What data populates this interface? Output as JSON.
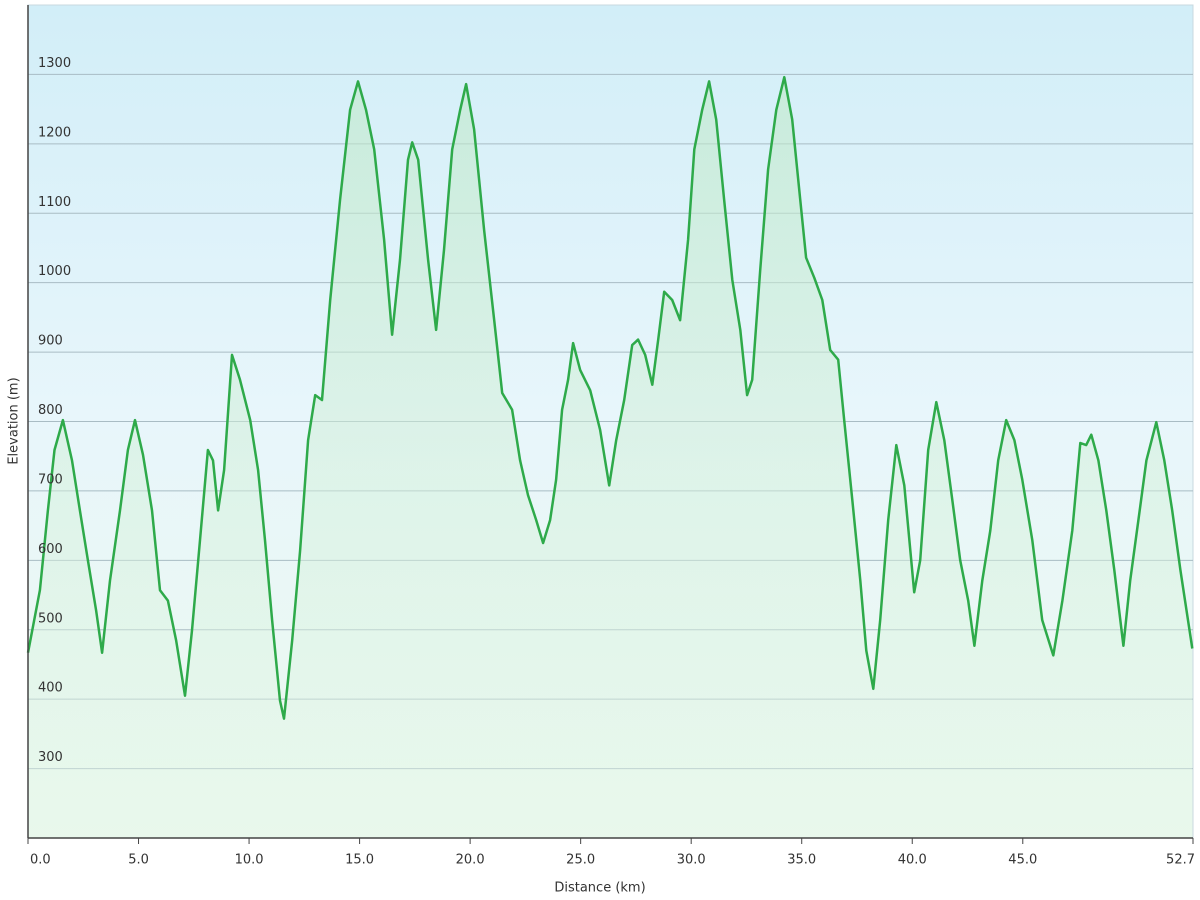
{
  "chart_data": {
    "type": "area",
    "x_label": "Distance (km)",
    "y_label": "Elevation (m)",
    "x": [
      0,
      0.54,
      0.9,
      1.2,
      1.58,
      1.99,
      2.35,
      2.71,
      3.08,
      3.35,
      3.71,
      4.16,
      4.52,
      4.84,
      5.2,
      5.61,
      5.97,
      6.33,
      6.7,
      7.1,
      7.42,
      7.78,
      8.14,
      8.37,
      8.6,
      8.87,
      9.23,
      9.59,
      10.05,
      10.41,
      10.72,
      11.04,
      11.4,
      11.58,
      11.95,
      12.31,
      12.67,
      12.99,
      13.3,
      13.67,
      14.12,
      14.57,
      14.93,
      15.29,
      15.66,
      16.11,
      16.47,
      16.83,
      17.19,
      17.38,
      17.65,
      18.1,
      18.46,
      18.82,
      19.19,
      19.55,
      19.82,
      20.18,
      20.63,
      21.09,
      21.45,
      21.9,
      22.26,
      22.62,
      22.99,
      23.3,
      23.62,
      23.89,
      24.16,
      24.43,
      24.66,
      24.98,
      25.43,
      25.88,
      26.29,
      26.61,
      26.97,
      27.33,
      27.6,
      27.92,
      28.24,
      28.51,
      28.78,
      29.14,
      29.5,
      29.86,
      30.14,
      30.5,
      30.81,
      31.13,
      31.49,
      31.86,
      32.22,
      32.53,
      32.76,
      33.12,
      33.48,
      33.85,
      34.21,
      34.57,
      34.93,
      35.2,
      35.57,
      35.93,
      36.29,
      36.65,
      36.92,
      37.29,
      37.65,
      37.92,
      38.24,
      38.55,
      38.91,
      39.28,
      39.64,
      40.09,
      40.36,
      40.72,
      41.09,
      41.45,
      41.81,
      42.17,
      42.53,
      42.81,
      43.17,
      43.53,
      43.89,
      44.25,
      44.62,
      44.98,
      45.43,
      45.88,
      46.38,
      46.79,
      47.24,
      47.6,
      47.87,
      48.1,
      48.42,
      48.78,
      49.14,
      49.55,
      49.86,
      50.23,
      50.59,
      51.04,
      51.4,
      51.76,
      52.13,
      52.67
    ],
    "values": [
      467,
      557,
      672,
      759,
      802,
      744,
      672,
      600,
      528,
      467,
      571,
      672,
      759,
      802,
      752,
      672,
      557,
      542,
      485,
      405,
      499,
      629,
      759,
      744,
      672,
      730,
      896,
      860,
      802,
      730,
      629,
      514,
      398,
      372,
      485,
      614,
      773,
      838,
      831,
      975,
      1120,
      1249,
      1290,
      1249,
      1192,
      1062,
      925,
      1033,
      1177,
      1202,
      1177,
      1033,
      932,
      1047,
      1192,
      1249,
      1286,
      1221,
      1076,
      946,
      841,
      817,
      744,
      694,
      658,
      625,
      658,
      716,
      817,
      860,
      913,
      874,
      845,
      788,
      708,
      773,
      831,
      910,
      918,
      896,
      853,
      918,
      987,
      975,
      946,
      1062,
      1192,
      1249,
      1290,
      1235,
      1120,
      1004,
      932,
      838,
      860,
      1018,
      1163,
      1249,
      1296,
      1235,
      1120,
      1036,
      1007,
      975,
      903,
      889,
      802,
      687,
      571,
      470,
      415,
      514,
      658,
      766,
      708,
      554,
      600,
      759,
      828,
      773,
      687,
      600,
      542,
      477,
      571,
      643,
      744,
      802,
      773,
      716,
      629,
      514,
      463,
      542,
      643,
      769,
      766,
      781,
      744,
      672,
      586,
      477,
      571,
      658,
      744,
      799,
      744,
      672,
      586,
      473
    ],
    "color": "#2eaa4a",
    "xlim": [
      0,
      52.7
    ],
    "xticks": [
      {
        "value": 0,
        "label": "0.0"
      },
      {
        "value": 5,
        "label": "5.0"
      },
      {
        "value": 10,
        "label": "10.0"
      },
      {
        "value": 15,
        "label": "15.0"
      },
      {
        "value": 20,
        "label": "20.0"
      },
      {
        "value": 25,
        "label": "25.0"
      },
      {
        "value": 30,
        "label": "30.0"
      },
      {
        "value": 35,
        "label": "35.0"
      },
      {
        "value": 40,
        "label": "40.0"
      },
      {
        "value": 45,
        "label": "45.0"
      },
      52.7
    ],
    "ylim": [
      200,
      1400
    ],
    "yticks": [
      300,
      400,
      500,
      600,
      700,
      800,
      900,
      1000,
      1100,
      1200,
      1300
    ],
    "grid": true
  }
}
